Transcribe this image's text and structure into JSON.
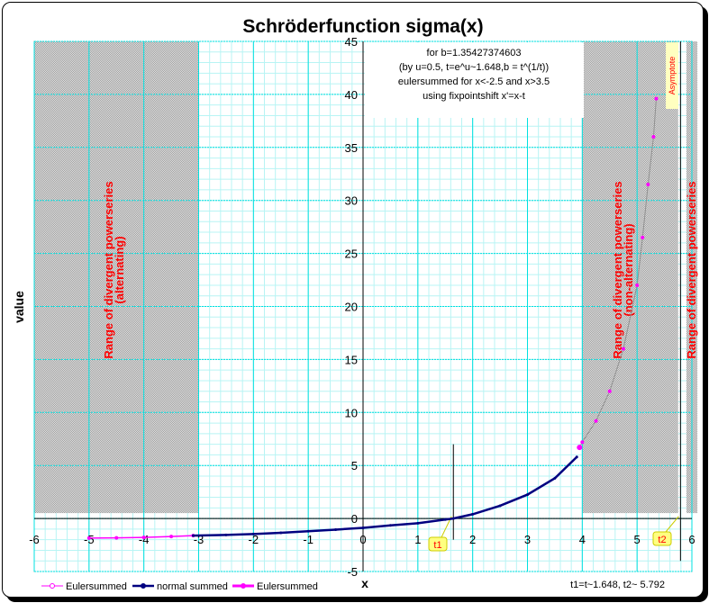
{
  "chart_data": {
    "type": "line",
    "title": "Schröderfunction sigma(x)",
    "xlabel": "x",
    "ylabel": "value",
    "xlim": [
      -6,
      6
    ],
    "ylim": [
      -5,
      45
    ],
    "xticks": [
      -6,
      -5,
      -4,
      -3,
      -2,
      -1,
      0,
      1,
      2,
      3,
      4,
      5,
      6
    ],
    "yticks": [
      -5,
      0,
      5,
      10,
      15,
      20,
      25,
      30,
      35,
      40,
      45
    ],
    "grid": true,
    "annotation": [
      "for b=1.35427374603",
      "(by u=0.5, t=e^u~1.648,b = t^(1/t))",
      "eulersummed for x<-2.5 and x>3.5",
      "using fixpointshift x'=x-t"
    ],
    "footnote": "t1=t~1.648,  t2~ 5.792",
    "shaded_ranges": [
      {
        "from": -6,
        "to": -3,
        "label": [
          "Range of divergent powerseries",
          "(alternating)"
        ]
      },
      {
        "from": 4,
        "to": 5.75,
        "label": [
          "Range of divergent powerseries",
          "(non-alternating)"
        ]
      },
      {
        "from": 5.9,
        "to": 6.1,
        "label": [
          "Range of divergent powerseries"
        ]
      }
    ],
    "markers": [
      {
        "x": 1.648,
        "label": "t1"
      },
      {
        "x": 5.792,
        "label": "t2",
        "asymptote_label": "Asymptote"
      }
    ],
    "series": [
      {
        "name": "Eulersummed",
        "color": "#ff00ff",
        "points": [
          [
            -5,
            -1.85
          ],
          [
            -4.5,
            -1.83
          ],
          [
            -4,
            -1.78
          ],
          [
            -3.5,
            -1.7
          ],
          [
            -3.1,
            -1.62
          ]
        ]
      },
      {
        "name": "normal summed",
        "color": "#000080",
        "points": [
          [
            -3.1,
            -1.62
          ],
          [
            -2.5,
            -1.55
          ],
          [
            -2,
            -1.47
          ],
          [
            -1.5,
            -1.35
          ],
          [
            -1,
            -1.2
          ],
          [
            -0.5,
            -1.05
          ],
          [
            0,
            -0.88
          ],
          [
            0.5,
            -0.65
          ],
          [
            1,
            -0.45
          ],
          [
            1.5,
            -0.1
          ],
          [
            1.648,
            0
          ],
          [
            2,
            0.4
          ],
          [
            2.5,
            1.2
          ],
          [
            3,
            2.25
          ],
          [
            3.5,
            3.8
          ],
          [
            3.9,
            5.8
          ]
        ]
      },
      {
        "name": "Eulersummed",
        "color": "#ff00ff",
        "points": [
          [
            3.95,
            6.7
          ],
          [
            4.0,
            7.2
          ],
          [
            4.25,
            9.2
          ],
          [
            4.5,
            12
          ],
          [
            4.75,
            16
          ],
          [
            5,
            22
          ],
          [
            5.1,
            26.5
          ],
          [
            5.2,
            31.5
          ],
          [
            5.3,
            36
          ],
          [
            5.35,
            39.6
          ]
        ]
      }
    ],
    "legend_position": "bottom-left"
  }
}
